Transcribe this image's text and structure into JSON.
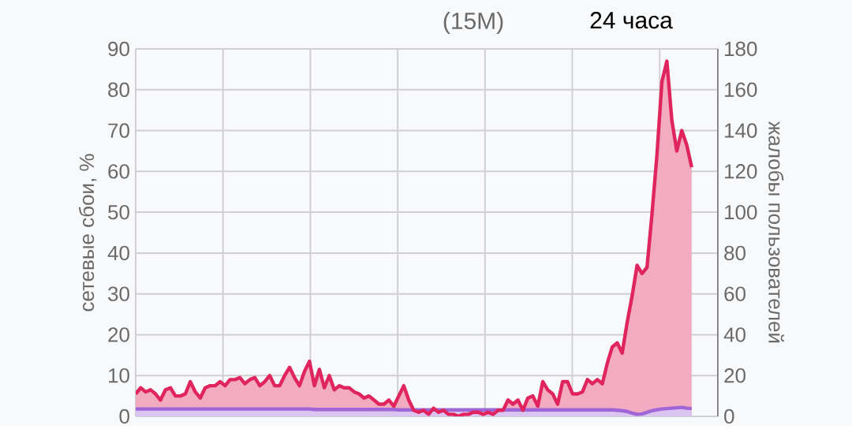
{
  "chart_data": {
    "type": "area",
    "ylabel": "сетевые сбои, %",
    "y2label": "жалобы пользователей",
    "annotations": [
      "(15M)",
      "24 часа"
    ],
    "categories": [
      null,
      null,
      null,
      null,
      null,
      null,
      null,
      null,
      null,
      null,
      null,
      null,
      null,
      null,
      null,
      null,
      null,
      null,
      null,
      null,
      null,
      null,
      null,
      null,
      null,
      null,
      null,
      null,
      null,
      null,
      null,
      null,
      null,
      null,
      null,
      null,
      null,
      null,
      null,
      null,
      null,
      null,
      null,
      null,
      null,
      null,
      null,
      null,
      null,
      null,
      null,
      null,
      null,
      null,
      null,
      null,
      null,
      null,
      null,
      null,
      null,
      null,
      null,
      null,
      null,
      null,
      null,
      null,
      null,
      null,
      null,
      null,
      null,
      null,
      null,
      null,
      null,
      null,
      null,
      null,
      null,
      null,
      null,
      null,
      null,
      null,
      null,
      null,
      null,
      null,
      null,
      null,
      null,
      null,
      null,
      null,
      null,
      null,
      null,
      null,
      null,
      null,
      null,
      null,
      null,
      null,
      null,
      null,
      null,
      null,
      null,
      null,
      null
    ],
    "ylim": [
      0,
      90
    ],
    "yticks": [
      0,
      10,
      20,
      30,
      40,
      50,
      60,
      70,
      80,
      90
    ],
    "y2lim": [
      0,
      180
    ],
    "y2ticks": [
      0,
      20,
      40,
      60,
      80,
      100,
      120,
      140,
      160,
      180
    ],
    "grid": true,
    "series": [
      {
        "axis": "y2",
        "color": "#e0245e",
        "values": [
          11,
          14,
          12,
          13,
          11,
          8,
          13,
          14,
          10,
          10,
          11,
          17,
          12,
          9,
          14,
          15,
          15,
          17,
          15,
          18,
          18,
          19,
          16,
          18,
          19,
          15,
          17,
          20,
          15,
          15,
          20,
          24,
          19,
          15,
          22,
          27,
          15,
          23,
          14,
          20,
          13,
          15,
          14,
          14,
          12,
          11,
          9,
          10,
          8,
          6,
          6,
          8,
          5,
          10,
          15,
          8,
          3,
          2,
          3,
          1,
          4,
          2,
          3,
          1,
          1,
          0,
          1,
          1,
          2,
          2,
          1,
          2,
          1,
          3,
          3,
          8,
          6,
          8,
          3,
          9,
          10,
          5,
          17,
          13,
          11,
          6,
          17,
          17,
          11,
          11,
          12,
          18,
          16,
          18,
          16,
          26,
          34,
          36,
          31,
          46,
          59,
          74,
          70,
          73,
          99,
          128,
          164,
          174,
          145,
          130,
          140,
          133,
          122
        ]
      },
      {
        "axis": "y",
        "color": "#a066d8",
        "values": [
          1.8,
          1.8,
          1.8,
          1.8,
          1.8,
          1.8,
          1.8,
          1.8,
          1.8,
          1.8,
          1.8,
          1.8,
          1.8,
          1.8,
          1.8,
          1.8,
          1.8,
          1.8,
          1.8,
          1.8,
          1.8,
          1.8,
          1.8,
          1.8,
          1.8,
          1.8,
          1.8,
          1.8,
          1.8,
          1.8,
          1.8,
          1.8,
          1.8,
          1.8,
          1.8,
          1.8,
          1.7,
          1.7,
          1.7,
          1.7,
          1.7,
          1.7,
          1.7,
          1.7,
          1.7,
          1.7,
          1.7,
          1.7,
          1.7,
          1.7,
          1.7,
          1.7,
          1.7,
          1.6,
          1.6,
          1.6,
          1.6,
          1.6,
          1.6,
          1.6,
          1.6,
          1.6,
          1.6,
          1.6,
          1.6,
          1.6,
          1.6,
          1.6,
          1.6,
          1.6,
          1.6,
          1.6,
          1.6,
          1.6,
          1.6,
          1.6,
          1.6,
          1.6,
          1.6,
          1.6,
          1.6,
          1.6,
          1.6,
          1.6,
          1.6,
          1.6,
          1.6,
          1.6,
          1.6,
          1.6,
          1.6,
          1.6,
          1.6,
          1.6,
          1.6,
          1.6,
          1.6,
          1.5,
          1.4,
          1.2,
          0.8,
          0.5,
          0.6,
          1.0,
          1.4,
          1.6,
          1.8,
          1.9,
          2.0,
          2.1,
          2.2,
          2.0,
          1.9
        ]
      }
    ]
  }
}
